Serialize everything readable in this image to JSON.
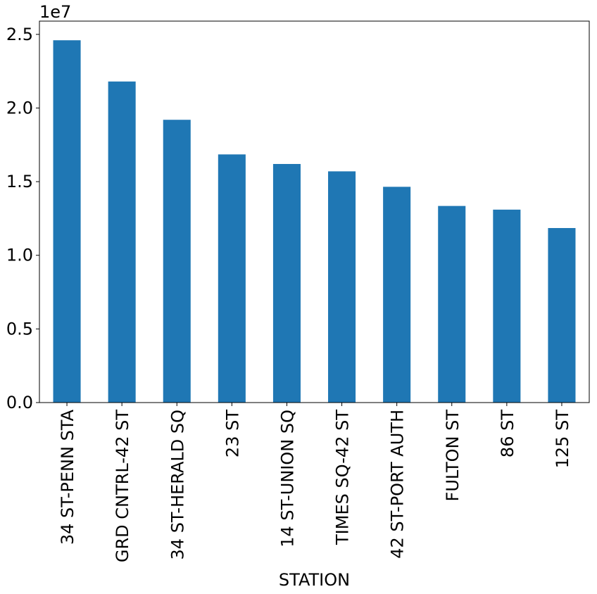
{
  "chart_data": {
    "type": "bar",
    "title": "",
    "xlabel": "STATION",
    "ylabel": "",
    "y_offset_label": "1e7",
    "categories": [
      "34 ST-PENN STA",
      "GRD CNTRL-42 ST",
      "34 ST-HERALD SQ",
      "23 ST",
      "14 ST-UNION SQ",
      "TIMES SQ-42 ST",
      "42 ST-PORT AUTH",
      "FULTON ST",
      "86 ST",
      "125 ST"
    ],
    "values": [
      24600000,
      21800000,
      19200000,
      16850000,
      16200000,
      15700000,
      14650000,
      13350000,
      13100000,
      11850000
    ],
    "ylim": [
      0,
      25900000
    ],
    "y_ticks": [
      0,
      5000000,
      10000000,
      15000000,
      20000000,
      25000000
    ],
    "y_tick_labels": [
      "0.0",
      "0.5",
      "1.0",
      "1.5",
      "2.0",
      "2.5"
    ],
    "grid": false,
    "legend": "none",
    "bar_color": "#1f77b4"
  }
}
